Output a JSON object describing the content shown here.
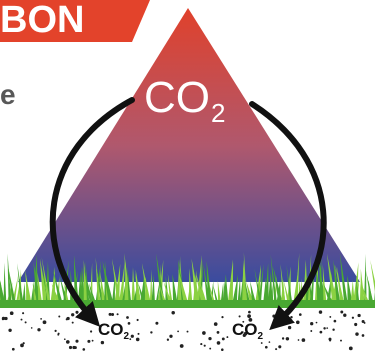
{
  "banner": {
    "text": "BON",
    "color": "#e3432b"
  },
  "side_text": "e",
  "diagram": {
    "atmosphere_label_main": "CO",
    "atmosphere_label_sub": "2",
    "soil_labels": [
      {
        "main": "CO",
        "sub": "2"
      },
      {
        "main": "CO",
        "sub": "2"
      }
    ],
    "colors": {
      "triangle_top": "#e0412b",
      "triangle_middle": "#b0586d",
      "triangle_bottom": "#3a4c9f",
      "grass": "#49a832",
      "grass_light": "#8bd142",
      "arrow": "#111111",
      "soil_dots": "#222222"
    }
  }
}
